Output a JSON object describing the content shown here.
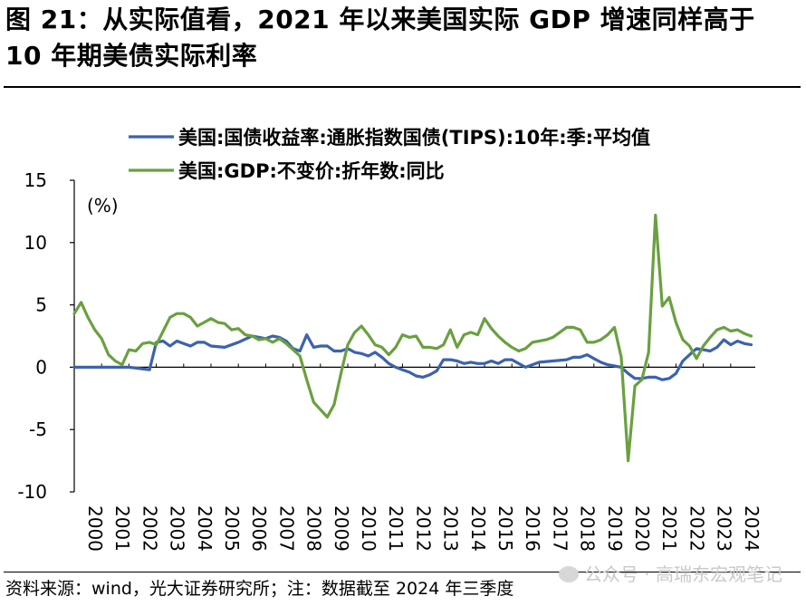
{
  "title": "图 21：从实际值看，2021 年以来美国实际 GDP 增速同样高于 10 年期美债实际利率",
  "source": "资料来源：wind，光大证券研究所；注：数据截至 2024 年三季度",
  "watermark": "公众号 · 高瑞东宏观笔记",
  "colors": {
    "tips": "#3b62ad",
    "gdp": "#6aa040",
    "axis": "#000000"
  },
  "chart_data": {
    "type": "line",
    "title": "",
    "ylabel": "(%)",
    "xlabel": "",
    "ylim": [
      -10,
      15
    ],
    "yticks": [
      -10,
      -5,
      0,
      5,
      10,
      15
    ],
    "xlim": [
      2000,
      2024.9
    ],
    "xticks": [
      "2000",
      "2001",
      "2002",
      "2003",
      "2004",
      "2005",
      "2006",
      "2007",
      "2008",
      "2009",
      "2010",
      "2011",
      "2012",
      "2013",
      "2014",
      "2015",
      "2016",
      "2017",
      "2018",
      "2019",
      "2020",
      "2021",
      "2022",
      "2023",
      "2024"
    ],
    "legend_position": "top",
    "series": [
      {
        "name": "美国:国债收益率:通胀指数国债(TIPS):10年:季:平均值",
        "color": "#3b62ad",
        "x": [
          2000,
          2001,
          2002,
          2002.75,
          2003,
          2003.25,
          2003.5,
          2003.75,
          2004,
          2004.25,
          2004.5,
          2004.75,
          2005,
          2005.5,
          2006,
          2006.5,
          2007,
          2007.25,
          2007.5,
          2007.75,
          2008,
          2008.25,
          2008.5,
          2008.75,
          2009,
          2009.25,
          2009.5,
          2009.75,
          2010,
          2010.25,
          2010.5,
          2010.75,
          2011,
          2011.25,
          2011.5,
          2011.75,
          2012,
          2012.25,
          2012.5,
          2012.75,
          2013,
          2013.25,
          2013.5,
          2013.75,
          2014,
          2014.25,
          2014.5,
          2014.75,
          2015,
          2015.25,
          2015.5,
          2015.75,
          2016,
          2016.25,
          2016.5,
          2016.75,
          2017,
          2017.5,
          2018,
          2018.25,
          2018.5,
          2018.75,
          2019,
          2019.25,
          2019.5,
          2019.75,
          2020,
          2020.25,
          2020.5,
          2020.75,
          2021,
          2021.25,
          2021.5,
          2021.75,
          2022,
          2022.25,
          2022.5,
          2022.75,
          2023,
          2023.25,
          2023.5,
          2023.75,
          2024,
          2024.25,
          2024.5,
          2024.75
        ],
        "values": [
          0,
          0,
          0,
          -0.2,
          2.0,
          2.1,
          1.7,
          2.1,
          1.9,
          1.7,
          2.0,
          2.0,
          1.7,
          1.6,
          2.0,
          2.5,
          2.3,
          2.5,
          2.4,
          2.1,
          1.5,
          1.3,
          2.6,
          1.6,
          1.7,
          1.7,
          1.3,
          1.3,
          1.5,
          1.2,
          1.1,
          0.9,
          1.2,
          0.8,
          0.3,
          0.0,
          -0.2,
          -0.4,
          -0.7,
          -0.8,
          -0.6,
          -0.3,
          0.6,
          0.6,
          0.5,
          0.3,
          0.4,
          0.3,
          0.3,
          0.5,
          0.3,
          0.6,
          0.6,
          0.3,
          0.0,
          0.2,
          0.4,
          0.5,
          0.6,
          0.8,
          0.8,
          1.0,
          0.7,
          0.4,
          0.2,
          0.1,
          0.0,
          -0.5,
          -0.9,
          -0.9,
          -0.8,
          -0.8,
          -1.0,
          -0.9,
          -0.5,
          0.5,
          1.0,
          1.5,
          1.4,
          1.3,
          1.6,
          2.2,
          1.8,
          2.1,
          1.9,
          1.8
        ]
      },
      {
        "name": "美国:GDP:不变价:折年数:同比",
        "color": "#6aa040",
        "x": [
          2000,
          2000.25,
          2000.5,
          2000.75,
          2001,
          2001.25,
          2001.5,
          2001.75,
          2002,
          2002.25,
          2002.5,
          2002.75,
          2003,
          2003.25,
          2003.5,
          2003.75,
          2004,
          2004.25,
          2004.5,
          2004.75,
          2005,
          2005.25,
          2005.5,
          2005.75,
          2006,
          2006.25,
          2006.5,
          2006.75,
          2007,
          2007.25,
          2007.5,
          2007.75,
          2008,
          2008.25,
          2008.5,
          2008.75,
          2009,
          2009.25,
          2009.5,
          2009.75,
          2010,
          2010.25,
          2010.5,
          2010.75,
          2011,
          2011.25,
          2011.5,
          2011.75,
          2012,
          2012.25,
          2012.5,
          2012.75,
          2013,
          2013.25,
          2013.5,
          2013.75,
          2014,
          2014.25,
          2014.5,
          2014.75,
          2015,
          2015.25,
          2015.5,
          2015.75,
          2016,
          2016.25,
          2016.5,
          2016.75,
          2017,
          2017.25,
          2017.5,
          2017.75,
          2018,
          2018.25,
          2018.5,
          2018.75,
          2019,
          2019.25,
          2019.5,
          2019.75,
          2020,
          2020.25,
          2020.5,
          2020.75,
          2021,
          2021.25,
          2021.5,
          2021.75,
          2022,
          2022.25,
          2022.5,
          2022.75,
          2023,
          2023.25,
          2023.5,
          2023.75,
          2024,
          2024.25,
          2024.5,
          2024.75
        ],
        "values": [
          4.3,
          5.2,
          4.0,
          3.0,
          2.3,
          1.0,
          0.5,
          0.2,
          1.4,
          1.3,
          1.9,
          2.0,
          1.8,
          2.9,
          4.0,
          4.3,
          4.3,
          4.0,
          3.3,
          3.6,
          3.9,
          3.6,
          3.5,
          3.0,
          3.1,
          2.6,
          2.5,
          2.2,
          2.3,
          2.0,
          2.3,
          1.9,
          1.4,
          0.9,
          -1.0,
          -2.8,
          -3.4,
          -4.0,
          -3.0,
          -0.5,
          1.8,
          2.8,
          3.3,
          2.6,
          1.8,
          1.6,
          1.0,
          1.6,
          2.6,
          2.4,
          2.5,
          1.6,
          1.6,
          1.5,
          1.8,
          3.0,
          1.6,
          2.6,
          2.8,
          2.6,
          3.9,
          3.1,
          2.5,
          2.0,
          1.6,
          1.3,
          1.5,
          2.0,
          2.1,
          2.2,
          2.4,
          2.8,
          3.2,
          3.2,
          3.0,
          2.0,
          2.0,
          2.2,
          2.6,
          3.2,
          0.8,
          -7.5,
          -1.5,
          -1.0,
          1.2,
          12.2,
          4.9,
          5.6,
          3.6,
          2.2,
          1.7,
          0.7,
          1.7,
          2.4,
          3.0,
          3.2,
          2.9,
          3.0,
          2.7,
          2.5
        ]
      }
    ]
  }
}
